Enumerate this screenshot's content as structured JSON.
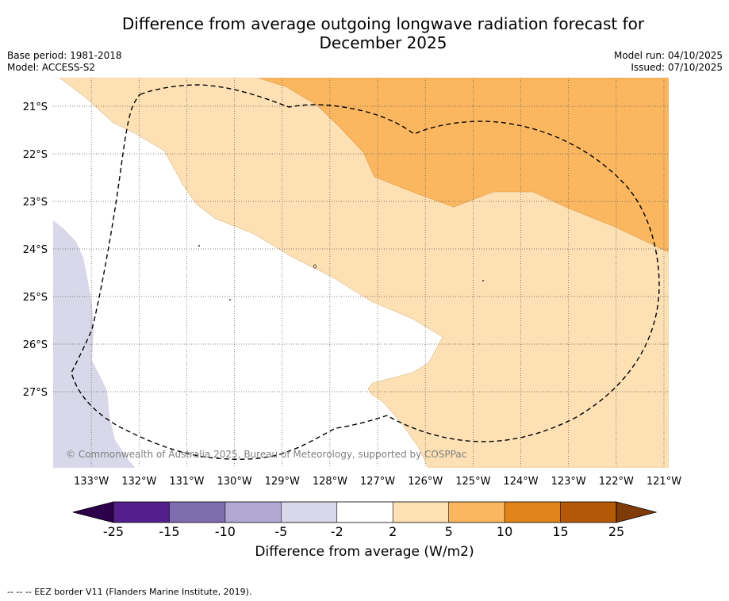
{
  "title": {
    "line1": "Difference from average outgoing longwave radiation forecast for",
    "line2": "December 2025"
  },
  "meta": {
    "base_period": "Base period: 1981-2018",
    "model": "Model: ACCESS-S2",
    "model_run": "Model run: 04/10/2025",
    "issued": "Issued: 07/10/2025"
  },
  "map": {
    "lat_labels": [
      "21°S",
      "22°S",
      "23°S",
      "24°S",
      "25°S",
      "26°S",
      "27°S"
    ],
    "lat_values": [
      -21,
      -22,
      -23,
      -24,
      -25,
      -26,
      -27
    ],
    "lon_labels": [
      "133°W",
      "132°W",
      "131°W",
      "130°W",
      "129°W",
      "128°W",
      "127°W",
      "126°W",
      "125°W",
      "124°W",
      "123°W",
      "122°W",
      "121°W"
    ],
    "lon_values": [
      -133,
      -132,
      -131,
      -130,
      -129,
      -128,
      -127,
      -126,
      -125,
      -124,
      -123,
      -122,
      -121
    ],
    "lon_range": [
      -133.8,
      -120.9
    ],
    "lat_range": [
      -28.6,
      -20.4
    ],
    "copyright": "© Commonwealth of Australia 2025, Bureau of Meteorology, supported by COSPPac",
    "colors": {
      "light_orange": "#fde0b4",
      "mid_orange": "#fbb760",
      "light_purple": "#d8d8ea",
      "gridline": "#555555",
      "eez": "#000000"
    }
  },
  "colorbar": {
    "tick_labels": [
      "-25",
      "-15",
      "-10",
      "-5",
      "-2",
      "2",
      "5",
      "10",
      "15",
      "25"
    ],
    "colors": [
      "#541f8a",
      "#7f6db0",
      "#b1a9d2",
      "#d8d8ea",
      "#ffffff",
      "#fde0b4",
      "#fbb760",
      "#e08419",
      "#b35806"
    ],
    "under_color": "#2d004b",
    "over_color": "#7f3b08",
    "label": "Difference from average (W/m2)"
  },
  "footer": {
    "legend": "--  --  -- EEZ border V11 (Flanders Marine Institute, 2019)."
  }
}
